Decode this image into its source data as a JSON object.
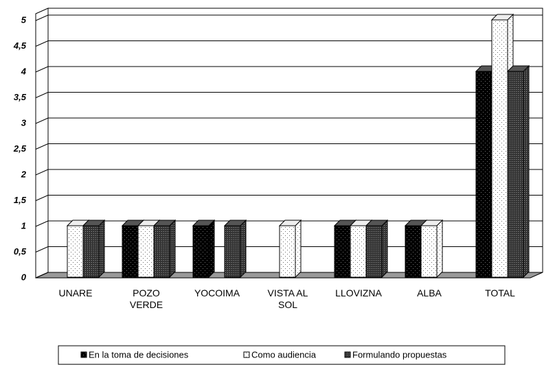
{
  "chart_data": {
    "type": "bar3d",
    "categories": [
      "UNARE",
      "POZO VERDE",
      "YOCOIMA",
      "VISTA AL SOL",
      "LLOVIZNA",
      "ALBA",
      "TOTAL"
    ],
    "series": [
      {
        "name": "En la toma de decisiones",
        "color": "#000000",
        "values": [
          0,
          1,
          1,
          0,
          1,
          1,
          4
        ]
      },
      {
        "name": "Como audiencia",
        "color": "#ffffff",
        "values": [
          1,
          1,
          0,
          1,
          1,
          1,
          5
        ]
      },
      {
        "name": "Formulando propuestas",
        "color": "#333333",
        "values": [
          1,
          1,
          1,
          0,
          1,
          0,
          4
        ]
      }
    ],
    "ylim": [
      0,
      5
    ],
    "yticks": [
      0,
      {
        "value": 0.5,
        "label": "0,5"
      },
      1,
      {
        "value": 1.5,
        "label": "1,5"
      },
      2,
      {
        "value": 2.5,
        "label": "2,5"
      },
      3,
      {
        "value": 3.5,
        "label": "3,5"
      },
      4,
      {
        "value": 4.5,
        "label": "4,5"
      },
      5
    ],
    "grid": true,
    "legend": "bottom"
  }
}
